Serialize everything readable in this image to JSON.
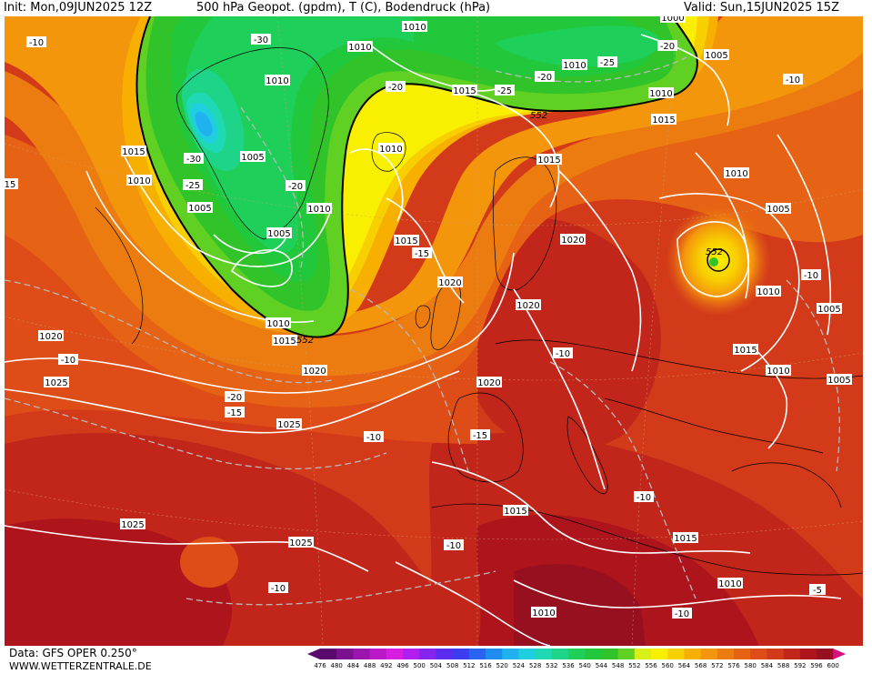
{
  "header": {
    "init": "Init: Mon,09JUN2025 12Z",
    "title": "500 hPa Geopot. (gpdm), T (C), Bodendruck (hPa)",
    "valid": "Valid: Sun,15JUN2025 15Z"
  },
  "footer": {
    "data_source": "Data: GFS OPER 0.250°",
    "website": "WWW.WETTERZENTRALE.DE"
  },
  "colorbar": {
    "values": [
      "476",
      "480",
      "484",
      "488",
      "492",
      "496",
      "500",
      "504",
      "508",
      "512",
      "516",
      "520",
      "524",
      "528",
      "532",
      "536",
      "540",
      "544",
      "548",
      "552",
      "556",
      "560",
      "564",
      "568",
      "572",
      "576",
      "580",
      "584",
      "588",
      "592",
      "596",
      "600"
    ],
    "colors": [
      "#5a0a6e",
      "#7c1190",
      "#9b14ae",
      "#bb18c8",
      "#d61ee0",
      "#b01ef0",
      "#8424ee",
      "#5c2cee",
      "#3d3cf0",
      "#2a62f2",
      "#1f8cf2",
      "#1fb2ef",
      "#1fcfe0",
      "#1ed9b4",
      "#1ed488",
      "#1ecf5a",
      "#22c83c",
      "#30c42a",
      "#60d022",
      "#d8f018",
      "#f8f000",
      "#f8cf00",
      "#f8b000",
      "#f4960c",
      "#ec7c10",
      "#e66214",
      "#de4c18",
      "#d23a1a",
      "#c2261a",
      "#ae141c",
      "#961020",
      "#d8127c"
    ]
  },
  "map_labels": {
    "pressure": [
      {
        "text": "1010",
        "cls": "p"
      },
      {
        "text": "1010",
        "cls": "p"
      },
      {
        "text": "1010",
        "cls": "p"
      },
      {
        "text": "1010",
        "cls": "p"
      },
      {
        "text": "1005",
        "cls": "p"
      },
      {
        "text": "1010",
        "cls": "p"
      },
      {
        "text": "1015",
        "cls": "p"
      },
      {
        "text": "1015",
        "cls": "p"
      },
      {
        "text": "1015",
        "cls": "p"
      },
      {
        "text": "1010",
        "cls": "p"
      },
      {
        "text": "1005",
        "cls": "p"
      },
      {
        "text": "1010",
        "cls": "p"
      },
      {
        "text": "1005",
        "cls": "p"
      },
      {
        "text": "1010",
        "cls": "p"
      },
      {
        "text": "1015",
        "cls": "p"
      },
      {
        "text": "1005",
        "cls": "p"
      },
      {
        "text": "1015",
        "cls": "p"
      },
      {
        "text": "1020",
        "cls": "p"
      },
      {
        "text": "1020",
        "cls": "p"
      },
      {
        "text": "1010",
        "cls": "p"
      },
      {
        "text": "1010",
        "cls": "p"
      },
      {
        "text": "1005",
        "cls": "p"
      },
      {
        "text": "1010",
        "cls": "p"
      },
      {
        "text": "1005",
        "cls": "p"
      },
      {
        "text": "1010",
        "cls": "p"
      },
      {
        "text": "1015",
        "cls": "p"
      },
      {
        "text": "1020",
        "cls": "p"
      },
      {
        "text": "1020",
        "cls": "p"
      },
      {
        "text": "1020",
        "cls": "p"
      },
      {
        "text": "1025",
        "cls": "p"
      },
      {
        "text": "1025",
        "cls": "p"
      },
      {
        "text": "1020",
        "cls": "p"
      },
      {
        "text": "1005",
        "cls": "p"
      },
      {
        "text": "1015",
        "cls": "p"
      },
      {
        "text": "1015",
        "cls": "p"
      },
      {
        "text": "1010",
        "cls": "p"
      },
      {
        "text": "1025",
        "cls": "p"
      },
      {
        "text": "1025",
        "cls": "p"
      },
      {
        "text": "1010",
        "cls": "p"
      },
      {
        "text": "1000",
        "cls": "p"
      },
      {
        "text": "15",
        "cls": "p"
      },
      {
        "text": "1015",
        "cls": "p"
      }
    ],
    "temperature": [
      {
        "text": "-30"
      },
      {
        "text": "-25"
      },
      {
        "text": "-20"
      },
      {
        "text": "-25"
      },
      {
        "text": "-20"
      },
      {
        "text": "-20"
      },
      {
        "text": "-30"
      },
      {
        "text": "-25"
      },
      {
        "text": "-20"
      },
      {
        "text": "-15"
      },
      {
        "text": "-10"
      },
      {
        "text": "-10"
      },
      {
        "text": "-20"
      },
      {
        "text": "-15"
      },
      {
        "text": "-10"
      },
      {
        "text": "-15"
      },
      {
        "text": "-10"
      },
      {
        "text": "-10"
      },
      {
        "text": "-10"
      },
      {
        "text": "-10"
      },
      {
        "text": "-10"
      },
      {
        "text": "-10"
      },
      {
        "text": "-5"
      },
      {
        "text": "-10"
      }
    ],
    "geopotential": [
      {
        "text": "552"
      },
      {
        "text": "552"
      },
      {
        "text": "552"
      }
    ]
  }
}
